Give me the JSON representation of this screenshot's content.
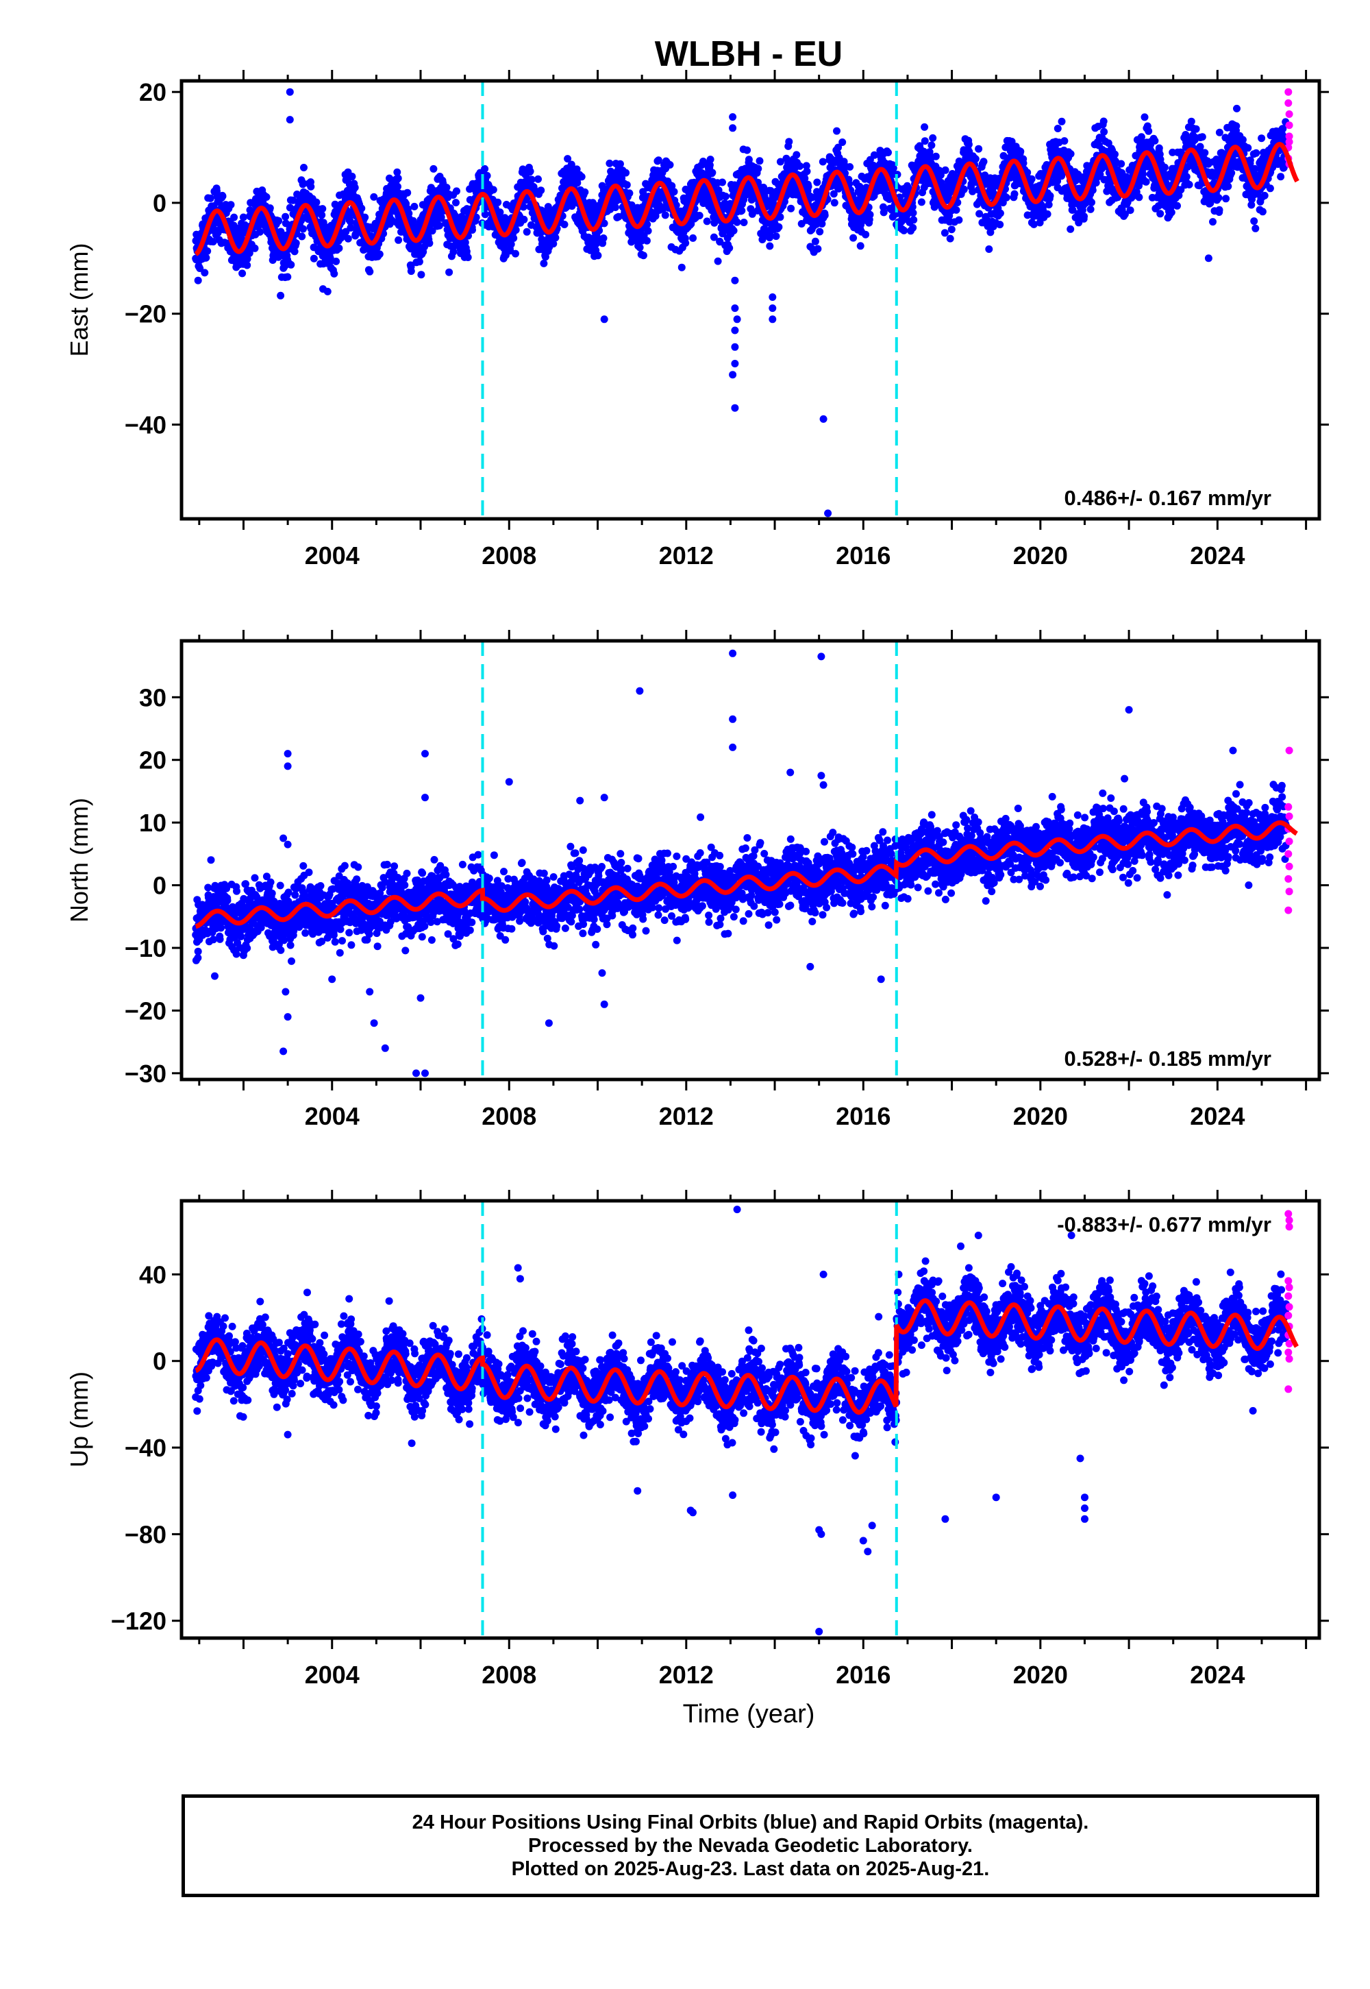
{
  "chart_data": {
    "title": "WLBH - EU",
    "type": "scatter",
    "xlabel": "Time (year)",
    "x_ticks": [
      2004,
      2008,
      2012,
      2016,
      2020,
      2024
    ],
    "xlim": [
      2000.6,
      2026.3
    ],
    "event_lines_x": [
      2007.4,
      2016.75
    ],
    "rapid_start": 2025.55,
    "colors": {
      "final": "#0000ff",
      "rapid": "#ff00ff",
      "model": "#ff0000",
      "events": "#00e5ee"
    },
    "legend_text": [
      "24 Hour Positions Using Final Orbits (blue) and Rapid Orbits (magenta).",
      "Processed by the Nevada Geodetic Laboratory.",
      "Plotted on 2025-Aug-23. Last data on 2025-Aug-21."
    ],
    "panels": [
      {
        "name": "East",
        "ylabel": "East (mm)",
        "ylim": [
          -57,
          22
        ],
        "y_ticks": [
          20,
          0,
          -20,
          -40
        ],
        "rate": "0.486+/- 0.167 mm/yr",
        "rate_position": "bottom-right",
        "model": {
          "segments": [
            [
              2000.9,
              2026.3,
              -5.5,
              0.5
            ]
          ],
          "annual_amplitude": 3.8
        },
        "scatter_sd": 2.5,
        "outliers": [
          [
            2003.05,
            20
          ],
          [
            2003.05,
            15
          ],
          [
            2013.05,
            15.5
          ],
          [
            2013.05,
            13.5
          ],
          [
            2013.1,
            -14
          ],
          [
            2013.1,
            -19
          ],
          [
            2013.15,
            -21
          ],
          [
            2013.1,
            -23
          ],
          [
            2013.1,
            -26
          ],
          [
            2013.1,
            -29
          ],
          [
            2013.05,
            -31
          ],
          [
            2013.1,
            -37
          ],
          [
            2013.95,
            -17
          ],
          [
            2013.95,
            -19
          ],
          [
            2013.95,
            -21
          ],
          [
            2010.15,
            -21
          ],
          [
            2015.1,
            -39
          ],
          [
            2015.2,
            -56
          ],
          [
            2003.9,
            -16
          ],
          [
            2023.8,
            -10
          ]
        ],
        "rapid": [
          [
            2025.6,
            20
          ],
          [
            2025.6,
            18
          ],
          [
            2025.62,
            16
          ],
          [
            2025.62,
            14
          ],
          [
            2025.62,
            12
          ],
          [
            2025.62,
            11
          ],
          [
            2025.6,
            10
          ],
          [
            2025.6,
            8
          ],
          [
            2025.62,
            7
          ]
        ]
      },
      {
        "name": "North",
        "ylabel": "North (mm)",
        "ylim": [
          -31,
          39
        ],
        "y_ticks": [
          30,
          20,
          10,
          0,
          -10,
          -20,
          -30
        ],
        "rate": "0.528+/- 0.185 mm/yr",
        "rate_position": "bottom-right",
        "model": {
          "segments": [
            [
              2000.9,
              2007.4,
              -5.5,
              0.55
            ],
            [
              2007.4,
              2016.75,
              -3.2,
              0.57
            ],
            [
              2016.75,
              2026.3,
              4.2,
              0.54
            ]
          ],
          "annual_amplitude": 1.1
        },
        "scatter_sd": 2.4,
        "outliers": [
          [
            2003.0,
            21
          ],
          [
            2003.0,
            19
          ],
          [
            2002.9,
            7.5
          ],
          [
            2003.0,
            6.5
          ],
          [
            2002.95,
            -17
          ],
          [
            2003.0,
            -21
          ],
          [
            2002.9,
            -26.5
          ],
          [
            2005.2,
            -26
          ],
          [
            2005.9,
            -30
          ],
          [
            2006.1,
            -30
          ],
          [
            2006.1,
            21
          ],
          [
            2006.1,
            14
          ],
          [
            2006.0,
            -18
          ],
          [
            2008.0,
            16.5
          ],
          [
            2009.6,
            13.5
          ],
          [
            2010.15,
            14
          ],
          [
            2010.1,
            -14
          ],
          [
            2010.15,
            -19
          ],
          [
            2008.9,
            -22
          ],
          [
            2001.35,
            -14.5
          ],
          [
            2004.0,
            -15
          ],
          [
            2004.85,
            -17
          ],
          [
            2004.95,
            -22
          ],
          [
            2010.95,
            31
          ],
          [
            2013.05,
            37
          ],
          [
            2013.05,
            26.5
          ],
          [
            2013.05,
            22
          ],
          [
            2014.35,
            18
          ],
          [
            2015.05,
            36.5
          ],
          [
            2015.05,
            17.5
          ],
          [
            2015.1,
            16
          ],
          [
            2016.4,
            -15
          ],
          [
            2022.0,
            28
          ],
          [
            2024.35,
            21.5
          ],
          [
            2021.9,
            17
          ],
          [
            2014.8,
            -13
          ]
        ],
        "rapid": [
          [
            2025.62,
            21.5
          ],
          [
            2025.6,
            12.5
          ],
          [
            2025.62,
            11
          ],
          [
            2025.6,
            9
          ],
          [
            2025.62,
            7
          ],
          [
            2025.6,
            5
          ],
          [
            2025.62,
            3
          ],
          [
            2025.6,
            1
          ],
          [
            2025.62,
            -1
          ],
          [
            2025.6,
            -4
          ]
        ]
      },
      {
        "name": "Up",
        "ylabel": "Up (mm)",
        "ylim": [
          -128,
          74
        ],
        "y_ticks": [
          40,
          0,
          -40,
          -80,
          -120
        ],
        "rate": "-0.883+/- 0.677 mm/yr",
        "rate_position": "top-right",
        "model": {
          "segments": [
            [
              2000.9,
              2007.4,
              3,
              -1.4
            ],
            [
              2007.4,
              2016.75,
              -9,
              -0.85
            ],
            [
              2016.75,
              2026.3,
              21,
              -0.95
            ]
          ],
          "annual_amplitude": 7.5
        },
        "scatter_sd": 7,
        "outliers": [
          [
            2013.15,
            70
          ],
          [
            2015.1,
            40
          ],
          [
            2008.2,
            43
          ],
          [
            2008.25,
            38
          ],
          [
            2017.85,
            -73
          ],
          [
            2019.0,
            -63
          ],
          [
            2020.9,
            -45
          ],
          [
            2021.0,
            -63
          ],
          [
            2021.0,
            -68
          ],
          [
            2021.0,
            -73
          ],
          [
            2015.0,
            -125
          ],
          [
            2012.1,
            -69
          ],
          [
            2012.15,
            -70
          ],
          [
            2013.05,
            -62
          ],
          [
            2015.0,
            -78
          ],
          [
            2015.05,
            -80
          ],
          [
            2016.1,
            -88
          ],
          [
            2016.0,
            -83
          ],
          [
            2024.8,
            -23
          ],
          [
            2018.2,
            53
          ],
          [
            2018.6,
            58
          ],
          [
            2020.7,
            58
          ],
          [
            2016.8,
            40
          ],
          [
            2003.0,
            -34
          ],
          [
            2005.8,
            -38
          ],
          [
            2010.9,
            -60
          ],
          [
            2016.2,
            -76
          ]
        ],
        "rapid": [
          [
            2025.6,
            68
          ],
          [
            2025.62,
            65
          ],
          [
            2025.62,
            62
          ],
          [
            2025.6,
            37
          ],
          [
            2025.62,
            34
          ],
          [
            2025.6,
            30
          ],
          [
            2025.62,
            25
          ],
          [
            2025.6,
            21
          ],
          [
            2025.62,
            16
          ],
          [
            2025.6,
            12
          ],
          [
            2025.62,
            8
          ],
          [
            2025.6,
            4
          ],
          [
            2025.62,
            1
          ],
          [
            2025.6,
            -13
          ]
        ]
      }
    ]
  }
}
